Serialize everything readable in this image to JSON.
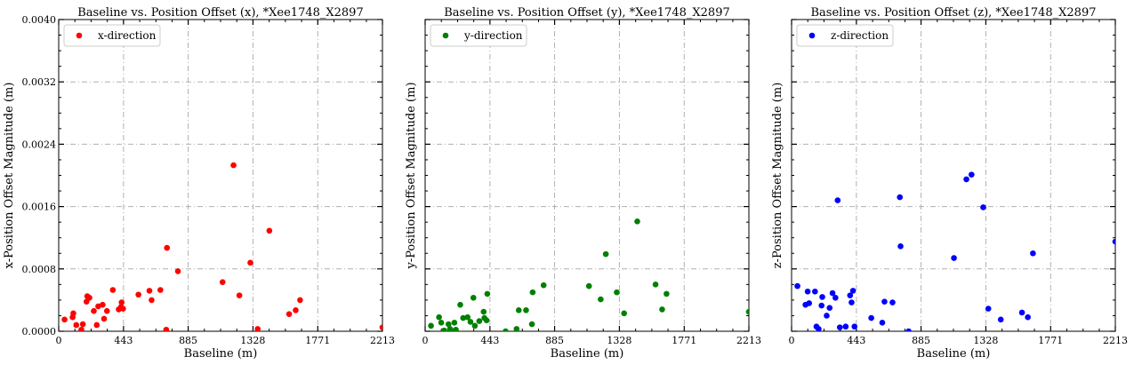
{
  "chart_data": [
    {
      "type": "scatter",
      "title": "Baseline vs. Position Offset (x), *Xee1748_X2897",
      "xlabel": "Baseline (m)",
      "ylabel": "x-Position Offset Magnitude (m)",
      "xlim": [
        0,
        2213
      ],
      "ylim": [
        0,
        0.004
      ],
      "xticks": [
        "0",
        "443",
        "885",
        "1328",
        "1771",
        "2213"
      ],
      "yticks": [
        "0.0000",
        "0.0008",
        "0.0016",
        "0.0024",
        "0.0032",
        "0.0040"
      ],
      "grid": true,
      "legend": "top-left",
      "series": [
        {
          "name": "x-direction",
          "color": "#ff0000",
          "points": [
            [
              40,
              0.00015
            ],
            [
              95,
              0.00018
            ],
            [
              100,
              0.00023
            ],
            [
              120,
              8e-05
            ],
            [
              155,
              2e-05
            ],
            [
              165,
              9e-05
            ],
            [
              190,
              0.00038
            ],
            [
              195,
              0.00045
            ],
            [
              210,
              0.00043
            ],
            [
              240,
              0.00026
            ],
            [
              260,
              8e-05
            ],
            [
              270,
              0.00032
            ],
            [
              300,
              0.00034
            ],
            [
              310,
              0.00016
            ],
            [
              330,
              0.00026
            ],
            [
              370,
              0.00053
            ],
            [
              410,
              0.00028
            ],
            [
              425,
              0.00031
            ],
            [
              430,
              0.00037
            ],
            [
              440,
              0.00029
            ],
            [
              545,
              0.00047
            ],
            [
              620,
              0.00052
            ],
            [
              635,
              0.0004
            ],
            [
              695,
              0.00053
            ],
            [
              735,
              2e-05
            ],
            [
              740,
              0.00107
            ],
            [
              815,
              0.00077
            ],
            [
              1120,
              0.00063
            ],
            [
              1195,
              0.00213
            ],
            [
              1235,
              0.00046
            ],
            [
              1310,
              0.00088
            ],
            [
              1360,
              3e-05
            ],
            [
              1440,
              0.00129
            ],
            [
              1575,
              0.00022
            ],
            [
              1620,
              0.00027
            ],
            [
              1650,
              0.0004
            ],
            [
              2213,
              5e-05
            ]
          ]
        }
      ]
    },
    {
      "type": "scatter",
      "title": "Baseline vs. Position Offset (y), *Xee1748_X2897",
      "xlabel": "Baseline (m)",
      "ylabel": "y-Position Offset Magnitude (m)",
      "xlim": [
        0,
        2213
      ],
      "ylim": [
        0,
        0.004
      ],
      "xticks": [
        "0",
        "443",
        "885",
        "1328",
        "1771",
        "2213"
      ],
      "yticks": [],
      "grid": true,
      "legend": "top-left",
      "series": [
        {
          "name": "y-direction",
          "color": "#008000",
          "points": [
            [
              40,
              7e-05
            ],
            [
              95,
              0.00018
            ],
            [
              110,
              0.00011
            ],
            [
              130,
              1e-05
            ],
            [
              160,
              9e-05
            ],
            [
              170,
              3e-05
            ],
            [
              185,
              0.0
            ],
            [
              200,
              0.00011
            ],
            [
              210,
              2e-05
            ],
            [
              240,
              0.00034
            ],
            [
              260,
              0.00017
            ],
            [
              290,
              0.00018
            ],
            [
              310,
              0.00012
            ],
            [
              330,
              0.00043
            ],
            [
              340,
              7e-05
            ],
            [
              370,
              0.00013
            ],
            [
              400,
              0.00025
            ],
            [
              405,
              0.00017
            ],
            [
              420,
              0.00014
            ],
            [
              425,
              0.00048
            ],
            [
              550,
              0.0
            ],
            [
              625,
              3e-05
            ],
            [
              640,
              0.00027
            ],
            [
              690,
              0.00027
            ],
            [
              730,
              9e-05
            ],
            [
              735,
              0.0005
            ],
            [
              810,
              0.00059
            ],
            [
              1120,
              0.00058
            ],
            [
              1200,
              0.00041
            ],
            [
              1235,
              0.00099
            ],
            [
              1310,
              0.0005
            ],
            [
              1360,
              0.00023
            ],
            [
              1450,
              0.00141
            ],
            [
              1575,
              0.0006
            ],
            [
              1620,
              0.00028
            ],
            [
              1650,
              0.00048
            ],
            [
              2213,
              0.00025
            ]
          ]
        }
      ]
    },
    {
      "type": "scatter",
      "title": "Baseline vs. Position Offset (z), *Xee1748_X2897",
      "xlabel": "Baseline (m)",
      "ylabel": "z-Position Offset Magnitude (m)",
      "xlim": [
        0,
        2213
      ],
      "ylim": [
        0,
        0.004
      ],
      "xticks": [
        "0",
        "443",
        "885",
        "1328",
        "1771",
        "2213"
      ],
      "yticks": [],
      "grid": true,
      "legend": "top-left",
      "series": [
        {
          "name": "z-direction",
          "color": "#0000ff",
          "points": [
            [
              40,
              0.00058
            ],
            [
              95,
              0.00034
            ],
            [
              110,
              0.00051
            ],
            [
              120,
              0.00036
            ],
            [
              160,
              0.00051
            ],
            [
              170,
              6e-05
            ],
            [
              185,
              3e-05
            ],
            [
              205,
              0.00033
            ],
            [
              210,
              0.00044
            ],
            [
              240,
              0.0002
            ],
            [
              260,
              0.0003
            ],
            [
              280,
              0.00049
            ],
            [
              300,
              0.00043
            ],
            [
              315,
              0.00168
            ],
            [
              330,
              5e-05
            ],
            [
              370,
              6e-05
            ],
            [
              400,
              0.00046
            ],
            [
              410,
              0.00037
            ],
            [
              420,
              0.00052
            ],
            [
              430,
              6e-05
            ],
            [
              545,
              0.00017
            ],
            [
              620,
              0.00011
            ],
            [
              635,
              0.00038
            ],
            [
              690,
              0.00037
            ],
            [
              740,
              0.00172
            ],
            [
              745,
              0.00109
            ],
            [
              800,
              0.0
            ],
            [
              1110,
              0.00094
            ],
            [
              1195,
              0.00195
            ],
            [
              1230,
              0.00201
            ],
            [
              1310,
              0.00159
            ],
            [
              1345,
              0.00029
            ],
            [
              1430,
              0.00015
            ],
            [
              1575,
              0.00024
            ],
            [
              1615,
              0.00018
            ],
            [
              1650,
              0.001
            ],
            [
              2213,
              0.00115
            ]
          ]
        }
      ]
    }
  ]
}
